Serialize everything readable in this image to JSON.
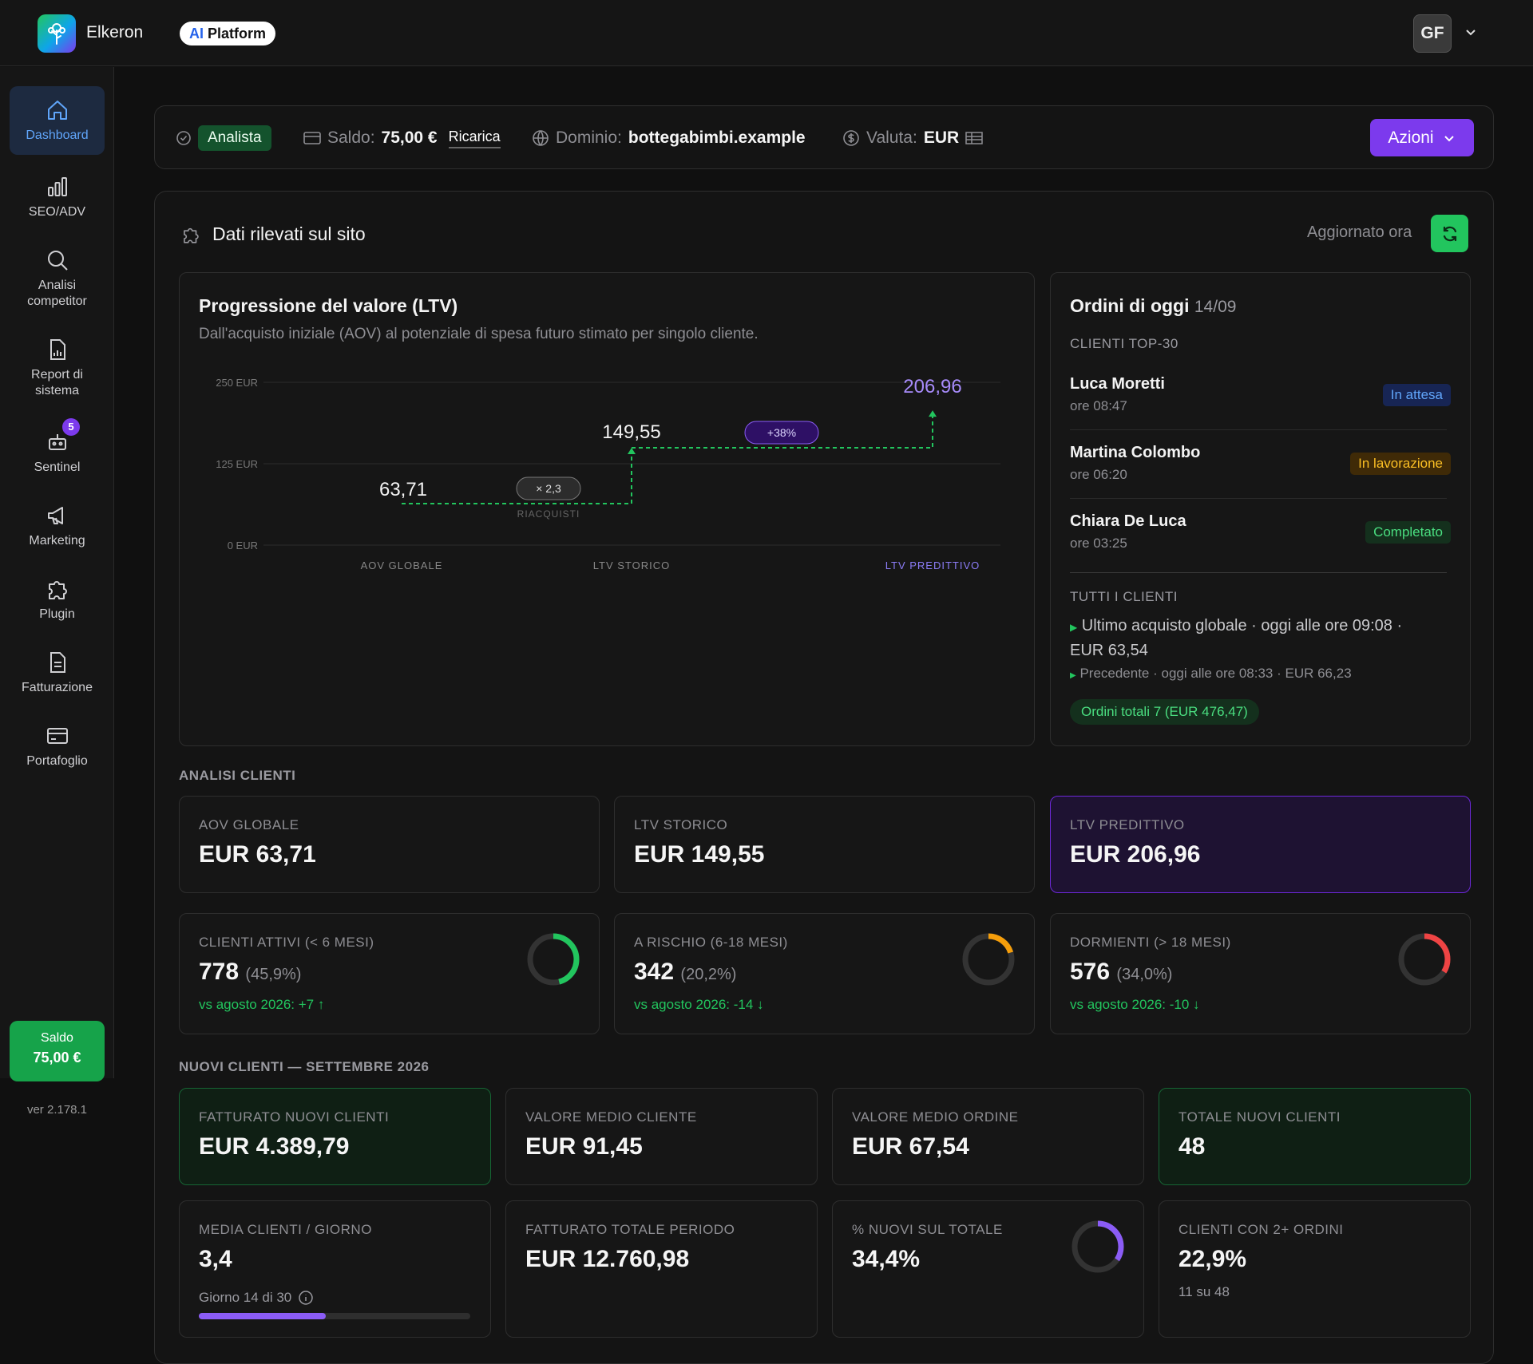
{
  "app": {
    "name": "Elkeron",
    "pill_ai": "AI",
    "pill_rest": "Platform",
    "avatar": "GF"
  },
  "sidebar": {
    "items": [
      {
        "label": "Dashboard"
      },
      {
        "label": "SEO/ADV"
      },
      {
        "label": "Analisi competitor"
      },
      {
        "label": "Report di sistema"
      },
      {
        "label": "Sentinel",
        "badge": "5"
      },
      {
        "label": "Marketing"
      },
      {
        "label": "Plugin"
      },
      {
        "label": "Fatturazione"
      },
      {
        "label": "Portafoglio"
      }
    ],
    "saldo_label": "Saldo",
    "saldo_value": "75,00 €",
    "version": "ver 2.178.1"
  },
  "infobar": {
    "role": "Analista",
    "saldo_label": "Saldo:",
    "saldo_value": "75,00 €",
    "ricarica": "Ricarica",
    "dominio_label": "Dominio:",
    "dominio_value": "bottegabimbi.example",
    "valuta_label": "Valuta:",
    "valuta_value": "EUR",
    "actions": "Azioni"
  },
  "panel": {
    "title": "Dati rilevati sul sito",
    "updated": "Aggiornato ora"
  },
  "ltv": {
    "title": "Progressione del valore (LTV)",
    "subtitle": "Dall'acquisto iniziale (AOV) al potenziale di spesa futuro stimato per singolo cliente.",
    "y_ticks": [
      "250 EUR",
      "125 EUR",
      "0 EUR"
    ],
    "x_labels": [
      "AOV GLOBALE",
      "LTV STORICO",
      "LTV PREDITTIVO"
    ],
    "values_text": [
      "63,71",
      "149,55",
      "206,96"
    ],
    "mult_badge": "× 2,3",
    "mult_caption": "RIACQUISTI",
    "pct_badge": "+38%"
  },
  "chart_data": {
    "type": "line",
    "categories": [
      "AOV GLOBALE",
      "LTV STORICO",
      "LTV PREDITTIVO"
    ],
    "values": [
      63.71,
      149.55,
      206.96
    ],
    "ylim": [
      0,
      250
    ],
    "yticks": [
      0,
      125,
      250
    ],
    "unit": "EUR",
    "annotations": [
      "× 2,3 RIACQUISTI",
      "+38%"
    ],
    "title": "Progressione del valore (LTV)"
  },
  "orders": {
    "title": "Ordini di oggi",
    "date": "14/09",
    "top_label": "CLIENTI TOP-30",
    "list": [
      {
        "name": "Luca Moretti",
        "time": "ore 08:47",
        "status": "In attesa",
        "color": "#60a5fa",
        "bg": "#172554"
      },
      {
        "name": "Martina Colombo",
        "time": "ore 06:20",
        "status": "In lavorazione",
        "color": "#fbbf24",
        "bg": "#3f2a07"
      },
      {
        "name": "Chiara De Luca",
        "time": "ore 03:25",
        "status": "Completato",
        "color": "#4ade80",
        "bg": "#14301d"
      }
    ],
    "all_label": "TUTTI I CLIENTI",
    "last_line1": "Ultimo acquisto globale · oggi alle ore 09:08 ·",
    "last_line2": "EUR 63,54",
    "prev": "Precedente · oggi alle ore 08:33 · EUR 66,23",
    "total": "Ordini totali 7 (EUR 476,47)"
  },
  "analisi": {
    "title": "ANALISI CLIENTI",
    "kpis": [
      {
        "label": "AOV GLOBALE",
        "value": "EUR 63,71"
      },
      {
        "label": "LTV STORICO",
        "value": "EUR 149,55"
      },
      {
        "label": "LTV PREDITTIVO",
        "value": "EUR 206,96"
      }
    ],
    "segments": [
      {
        "label": "CLIENTI ATTIVI (< 6 MESI)",
        "value": "778",
        "pct": "(45,9%)",
        "cmp": "vs agosto 2026: +7 ↑",
        "ring": 0.459,
        "color": "#22c55e"
      },
      {
        "label": "A RISCHIO (6-18 MESI)",
        "value": "342",
        "pct": "(20,2%)",
        "cmp": "vs agosto 2026: -14 ↓",
        "ring": 0.202,
        "color": "#f59e0b"
      },
      {
        "label": "DORMIENTI (> 18 MESI)",
        "value": "576",
        "pct": "(34,0%)",
        "cmp": "vs agosto 2026: -10 ↓",
        "ring": 0.34,
        "color": "#ef4444"
      }
    ]
  },
  "nuovi": {
    "title": "NUOVI CLIENTI — SETTEMBRE 2026",
    "row1": [
      {
        "label": "FATTURATO NUOVI CLIENTI",
        "value": "EUR 4.389,79"
      },
      {
        "label": "VALORE MEDIO CLIENTE",
        "value": "EUR 91,45"
      },
      {
        "label": "VALORE MEDIO ORDINE",
        "value": "EUR 67,54"
      },
      {
        "label": "TOTALE NUOVI CLIENTI",
        "value": "48"
      }
    ],
    "row2": [
      {
        "label": "MEDIA CLIENTI / GIORNO",
        "value": "3,4",
        "sub": "Giorno 14 di 30",
        "progress": 0.467
      },
      {
        "label": "FATTURATO TOTALE PERIODO",
        "value": "EUR 12.760,98"
      },
      {
        "label": "% NUOVI SUL TOTALE",
        "value": "34,4%",
        "ring": 0.344,
        "color": "#8b5cf6"
      },
      {
        "label": "CLIENTI CON 2+ ORDINI",
        "value": "22,9%",
        "sub": "11 su 48"
      }
    ]
  }
}
